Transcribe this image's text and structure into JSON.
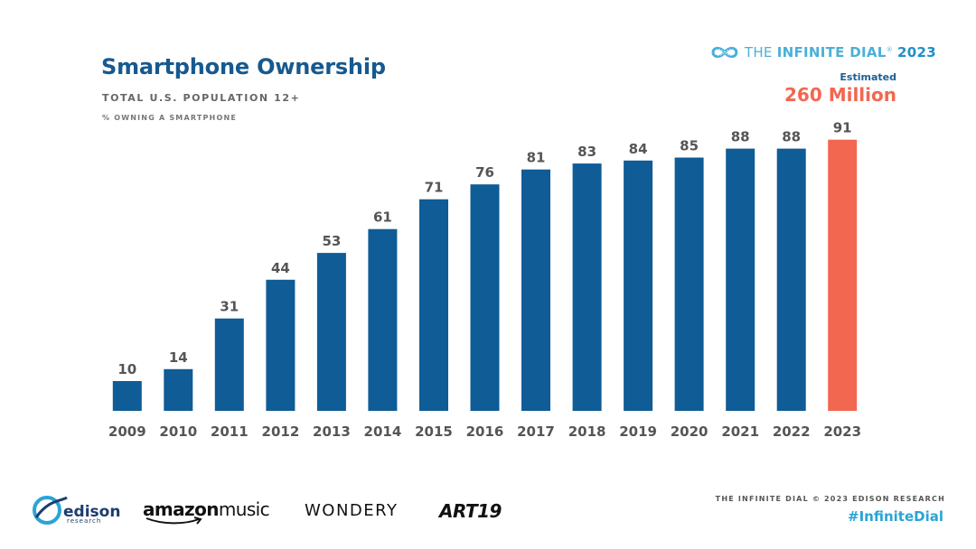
{
  "header": {
    "title": "Smartphone Ownership",
    "subtitle": "TOTAL U.S. POPULATION 12+",
    "note": "% OWNING A SMARTPHONE"
  },
  "brand": {
    "prefix": "THE ",
    "name": "INFINITE DIAL",
    "trademark": "®",
    "year": "2023",
    "icon": "infinity-icon"
  },
  "estimate": {
    "label": "Estimated",
    "value": "260 Million"
  },
  "colors": {
    "bar": "#0f5c96",
    "highlight": "#f26750",
    "label": "#555555"
  },
  "chart_data": {
    "type": "bar",
    "title": "Smartphone Ownership",
    "subtitle": "TOTAL U.S. POPULATION 12+",
    "ylabel": "% OWNING A SMARTPHONE",
    "xlabel": "",
    "categories": [
      "2009",
      "2010",
      "2011",
      "2012",
      "2013",
      "2014",
      "2015",
      "2016",
      "2017",
      "2018",
      "2019",
      "2020",
      "2021",
      "2022",
      "2023"
    ],
    "values": [
      10,
      14,
      31,
      44,
      53,
      61,
      71,
      76,
      81,
      83,
      84,
      85,
      88,
      88,
      91
    ],
    "highlight_index": 14,
    "ylim": [
      0,
      100
    ],
    "grid": false,
    "legend": "none",
    "data_labels": true
  },
  "footer": {
    "edison_name": "edison",
    "edison_sub": "research",
    "amazon_brand": "amazon",
    "amazon_product": "music",
    "wondery": "WONDERY",
    "art19": "ART19",
    "copyright": "THE INFINITE DIAL   © 2023 EDISON RESEARCH",
    "hashtag": "#InfiniteDial"
  }
}
